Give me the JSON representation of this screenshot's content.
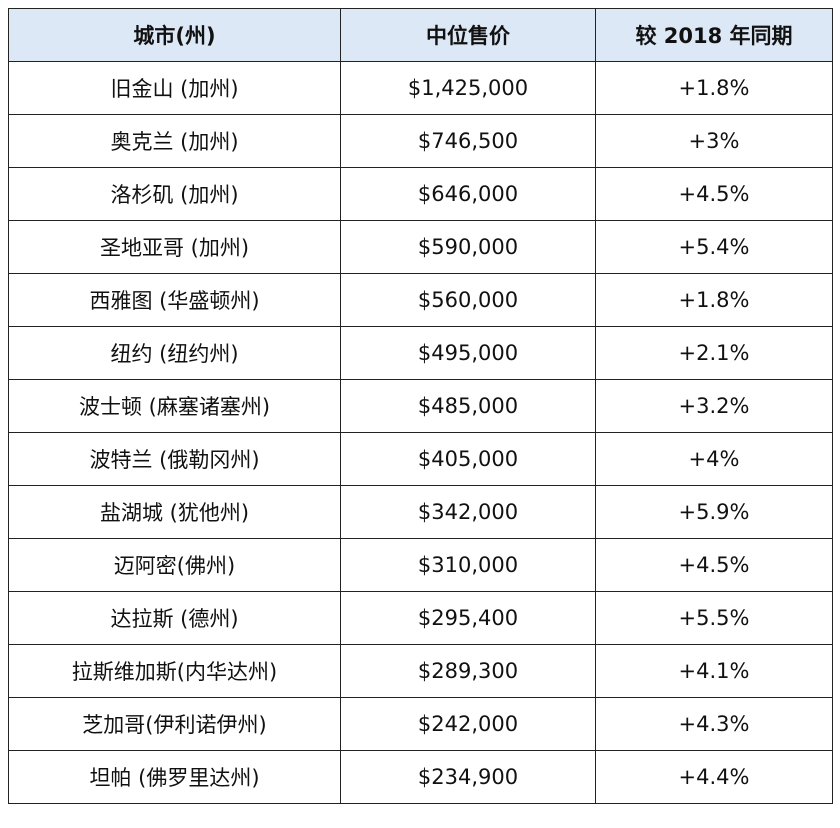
{
  "table": {
    "header": [
      "城市(州)",
      "中位售价",
      "较 2018 年同期"
    ],
    "rows": [
      [
        "旧金山 (加州)",
        "$1,425,000",
        "+1.8%"
      ],
      [
        "奥克兰 (加州)",
        "$746,500",
        "+3%"
      ],
      [
        "洛杉矶 (加州)",
        "$646,000",
        "+4.5%"
      ],
      [
        "圣地亚哥 (加州)",
        "$590,000",
        "+5.4%"
      ],
      [
        "西雅图 (华盛顿州)",
        "$560,000",
        "+1.8%"
      ],
      [
        "纽约 (纽约州)",
        "$495,000",
        "+2.1%"
      ],
      [
        "波士顿 (麻塞诸塞州)",
        "$485,000",
        "+3.2%"
      ],
      [
        "波特兰 (俄勒冈州)",
        "$405,000",
        "+4%"
      ],
      [
        "盐湖城 (犹他州)",
        "$342,000",
        "+5.9%"
      ],
      [
        "迈阿密(佛州)",
        "$310,000",
        "+4.5%"
      ],
      [
        "达拉斯 (德州)",
        "$295,400",
        "+5.5%"
      ],
      [
        "拉斯维加斯(内华达州)",
        "$289,300",
        "+4.1%"
      ],
      [
        "芝加哥(伊利诺伊州)",
        "$242,000",
        "+4.3%"
      ],
      [
        "坦帕 (佛罗里达州)",
        "$234,900",
        "+4.4%"
      ]
    ]
  }
}
